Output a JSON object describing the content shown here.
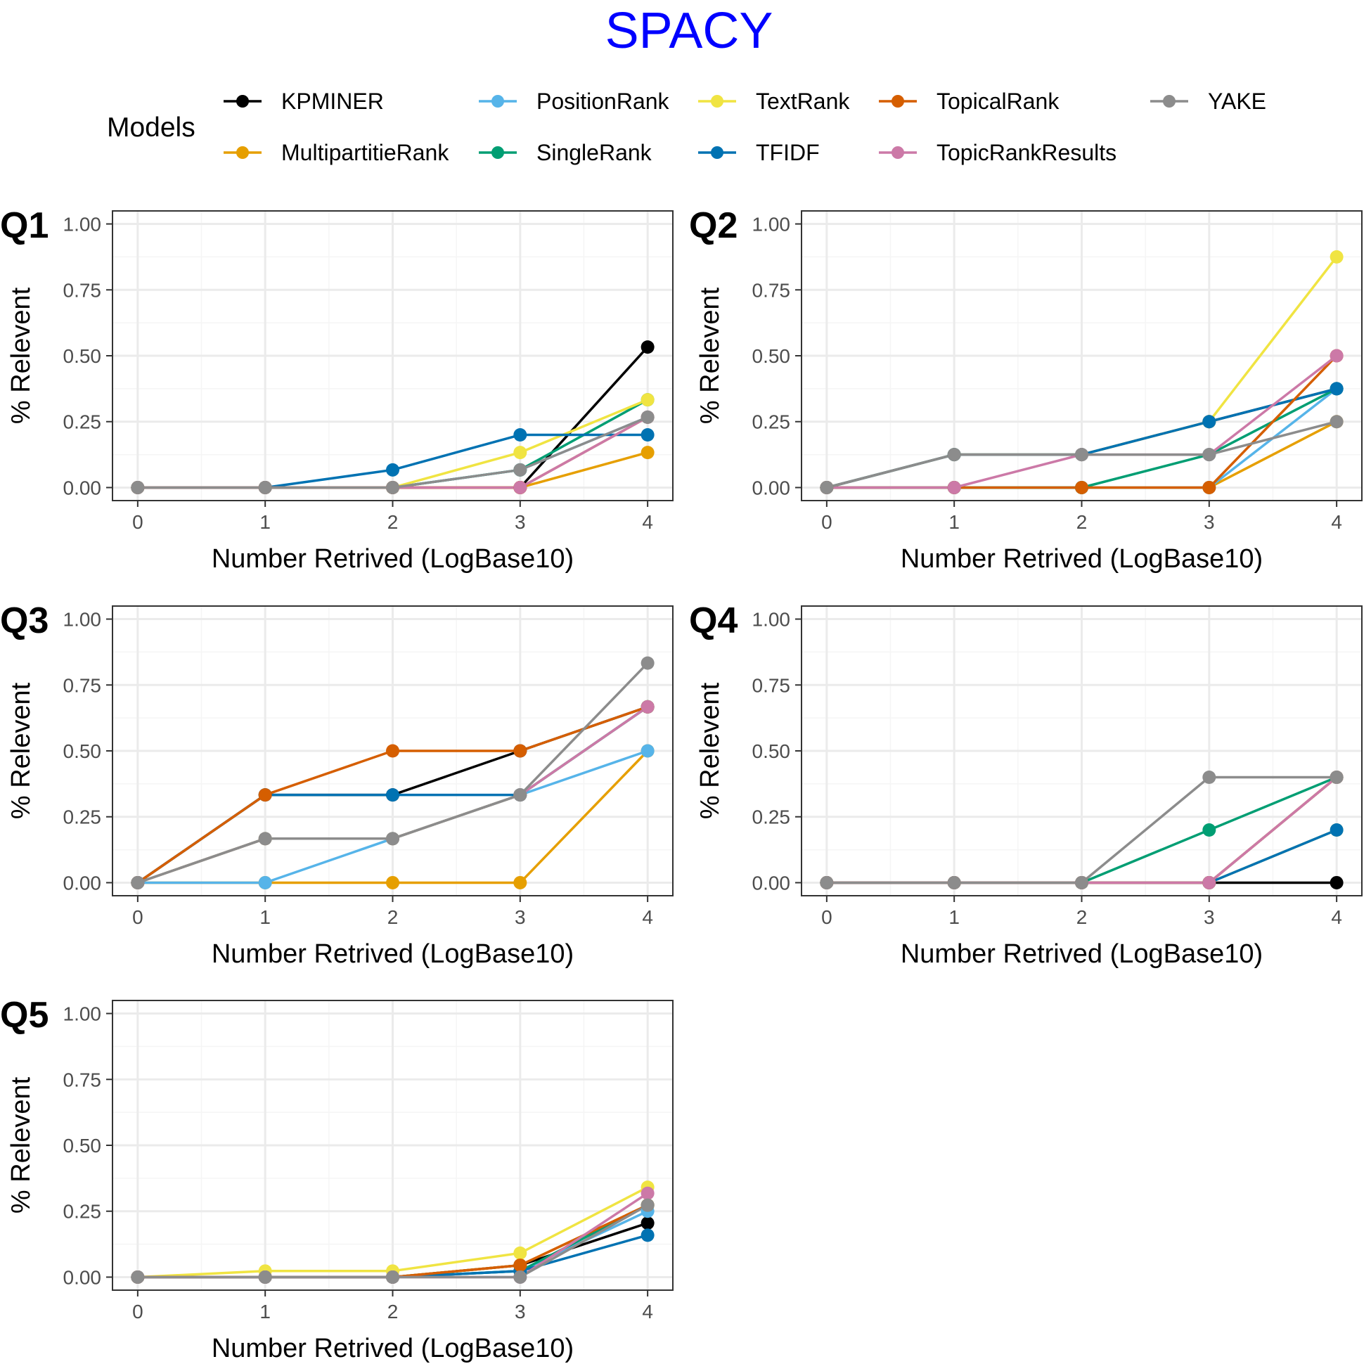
{
  "title": "SPACY",
  "colors": {
    "title": "#0000FF",
    "panel_border": "#333333",
    "grid_major": "#EBEBEB",
    "grid_minor": "#F5F5F5",
    "tick_text": "#4D4D4D"
  },
  "legend": {
    "title": "Models",
    "position": "top"
  },
  "chart_data": {
    "type": "line",
    "facet_layout": "2 columns x 3 rows",
    "grid": true,
    "x_ticks": [
      0,
      1,
      2,
      3,
      4
    ],
    "y_ticks": [
      "0.00",
      "0.25",
      "0.50",
      "0.75",
      "1.00"
    ],
    "xlim": [
      0,
      4
    ],
    "ylim": [
      0,
      1
    ],
    "xlabel": "Number Retrived (LogBase10)",
    "ylabel": "% Relevent",
    "series": [
      {
        "name": "KPMINER",
        "color": "#000000"
      },
      {
        "name": "MultipartitieRank",
        "color": "#E69F00"
      },
      {
        "name": "PositionRank",
        "color": "#56B4E9"
      },
      {
        "name": "SingleRank",
        "color": "#009E73"
      },
      {
        "name": "TextRank",
        "color": "#F0E442"
      },
      {
        "name": "TFIDF",
        "color": "#0072B2"
      },
      {
        "name": "TopicalRank",
        "color": "#D55E00"
      },
      {
        "name": "TopicRankResults",
        "color": "#CC79A7"
      },
      {
        "name": "YAKE",
        "color": "#8C8C8C"
      }
    ],
    "panels": [
      {
        "tag": "Q1",
        "x": [
          0,
          1,
          2,
          3,
          4
        ],
        "values": {
          "KPMINER": [
            0,
            0,
            0,
            0,
            0.533
          ],
          "MultipartitieRank": [
            0,
            0,
            0,
            0,
            0.133
          ],
          "PositionRank": [
            0,
            0,
            0,
            0.067,
            0.267
          ],
          "SingleRank": [
            0,
            0,
            0,
            0.067,
            0.333
          ],
          "TextRank": [
            0,
            0,
            0,
            0.133,
            0.333
          ],
          "TFIDF": [
            0,
            0,
            0.067,
            0.2,
            0.2
          ],
          "TopicalRank": [
            0,
            0,
            0,
            0,
            0.267
          ],
          "TopicRankResults": [
            0,
            0,
            0,
            0,
            0.267
          ],
          "YAKE": [
            0,
            0,
            0,
            0.067,
            0.267
          ]
        }
      },
      {
        "tag": "Q2",
        "x": [
          0,
          1,
          2,
          3,
          4
        ],
        "values": {
          "KPMINER": [
            0,
            0.125,
            0.125,
            0.25,
            0.375
          ],
          "MultipartitieRank": [
            0,
            0,
            0,
            0,
            0.25
          ],
          "PositionRank": [
            0,
            0,
            0,
            0,
            0.375
          ],
          "SingleRank": [
            0,
            0,
            0,
            0.125,
            0.375
          ],
          "TextRank": [
            0,
            0.125,
            0.125,
            0.25,
            0.875
          ],
          "TFIDF": [
            0,
            0.125,
            0.125,
            0.25,
            0.375
          ],
          "TopicalRank": [
            0,
            0,
            0,
            0,
            0.5
          ],
          "TopicRankResults": [
            0,
            0,
            0.125,
            0.125,
            0.5
          ],
          "YAKE": [
            0,
            0.125,
            0.125,
            0.125,
            0.25
          ]
        }
      },
      {
        "tag": "Q3",
        "x": [
          0,
          1,
          2,
          3,
          4
        ],
        "values": {
          "KPMINER": [
            0,
            0.333,
            0.333,
            0.5,
            0.667
          ],
          "MultipartitieRank": [
            0,
            0,
            0,
            0,
            0.5
          ],
          "PositionRank": [
            0,
            0,
            0.167,
            0.333,
            0.5
          ],
          "SingleRank": [
            0,
            0.167,
            0.167,
            0.333,
            0.667
          ],
          "TextRank": [
            0,
            0.167,
            0.167,
            0.333,
            0.667
          ],
          "TFIDF": [
            0,
            0.333,
            0.333,
            0.333,
            0.667
          ],
          "TopicalRank": [
            0,
            0.333,
            0.5,
            0.5,
            0.667
          ],
          "TopicRankResults": [
            0,
            0.167,
            0.167,
            0.333,
            0.667
          ],
          "YAKE": [
            0,
            0.167,
            0.167,
            0.333,
            0.833
          ]
        }
      },
      {
        "tag": "Q4",
        "x": [
          0,
          1,
          2,
          3,
          4
        ],
        "values": {
          "KPMINER": [
            0,
            0,
            0,
            0,
            0
          ],
          "MultipartitieRank": [
            0,
            0,
            0,
            0,
            0.4
          ],
          "PositionRank": [
            0,
            0,
            0,
            0,
            0.4
          ],
          "SingleRank": [
            0,
            0,
            0,
            0.2,
            0.4
          ],
          "TextRank": [
            0,
            0,
            0,
            0,
            0.2
          ],
          "TFIDF": [
            0,
            0,
            0,
            0,
            0.2
          ],
          "TopicalRank": [
            0,
            0,
            0,
            0,
            0.4
          ],
          "TopicRankResults": [
            0,
            0,
            0,
            0,
            0.4
          ],
          "YAKE": [
            0,
            0,
            0,
            0.4,
            0.4
          ]
        }
      },
      {
        "tag": "Q5",
        "x": [
          0,
          1,
          2,
          3,
          4
        ],
        "values": {
          "KPMINER": [
            0,
            0,
            0,
            0.045,
            0.205
          ],
          "MultipartitieRank": [
            0,
            0,
            0,
            0.045,
            0.273
          ],
          "PositionRank": [
            0,
            0,
            0,
            0.023,
            0.25
          ],
          "SingleRank": [
            0,
            0,
            0,
            0.023,
            0.273
          ],
          "TextRank": [
            0,
            0.023,
            0.023,
            0.091,
            0.341
          ],
          "TFIDF": [
            0,
            0,
            0,
            0.023,
            0.159
          ],
          "TopicalRank": [
            0,
            0,
            0,
            0.045,
            0.273
          ],
          "TopicRankResults": [
            0,
            0,
            0,
            0,
            0.318
          ],
          "YAKE": [
            0,
            0,
            0,
            0,
            0.273
          ]
        }
      }
    ]
  }
}
